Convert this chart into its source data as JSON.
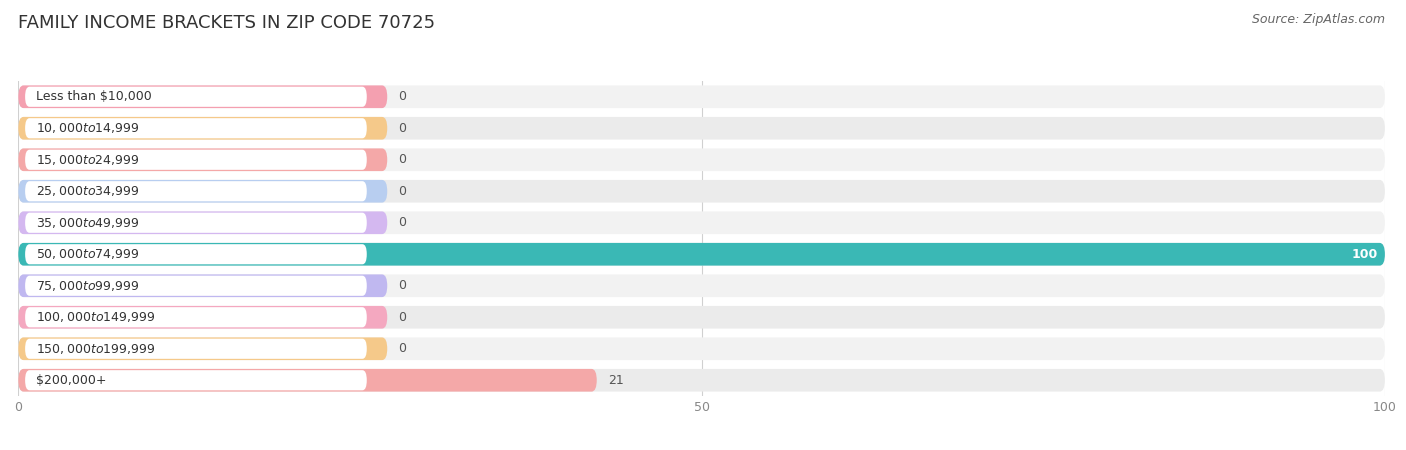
{
  "title": "FAMILY INCOME BRACKETS IN ZIP CODE 70725",
  "source": "Source: ZipAtlas.com",
  "categories": [
    "Less than $10,000",
    "$10,000 to $14,999",
    "$15,000 to $24,999",
    "$25,000 to $34,999",
    "$35,000 to $49,999",
    "$50,000 to $74,999",
    "$75,000 to $99,999",
    "$100,000 to $149,999",
    "$150,000 to $199,999",
    "$200,000+"
  ],
  "values": [
    0,
    0,
    0,
    0,
    0,
    100,
    0,
    0,
    0,
    21
  ],
  "bar_colors": [
    "#f4a0b0",
    "#f5c98a",
    "#f4a8a8",
    "#b8cef0",
    "#d4b8f0",
    "#3ab8b5",
    "#c0b8f0",
    "#f4a8c0",
    "#f5c98a",
    "#f4a8a8"
  ],
  "xlim": [
    0,
    100
  ],
  "xticks": [
    0,
    50,
    100
  ],
  "title_fontsize": 13,
  "label_fontsize": 9,
  "value_fontsize": 9,
  "source_fontsize": 9,
  "background_color": "#ffffff",
  "row_bg_even": "#f0f0f0",
  "row_bg_odd": "#e8e8e8",
  "white_label_bg": "#ffffff",
  "label_color": "#333333",
  "zero_value_color": "#555555",
  "grid_color": "#d0d0d0"
}
